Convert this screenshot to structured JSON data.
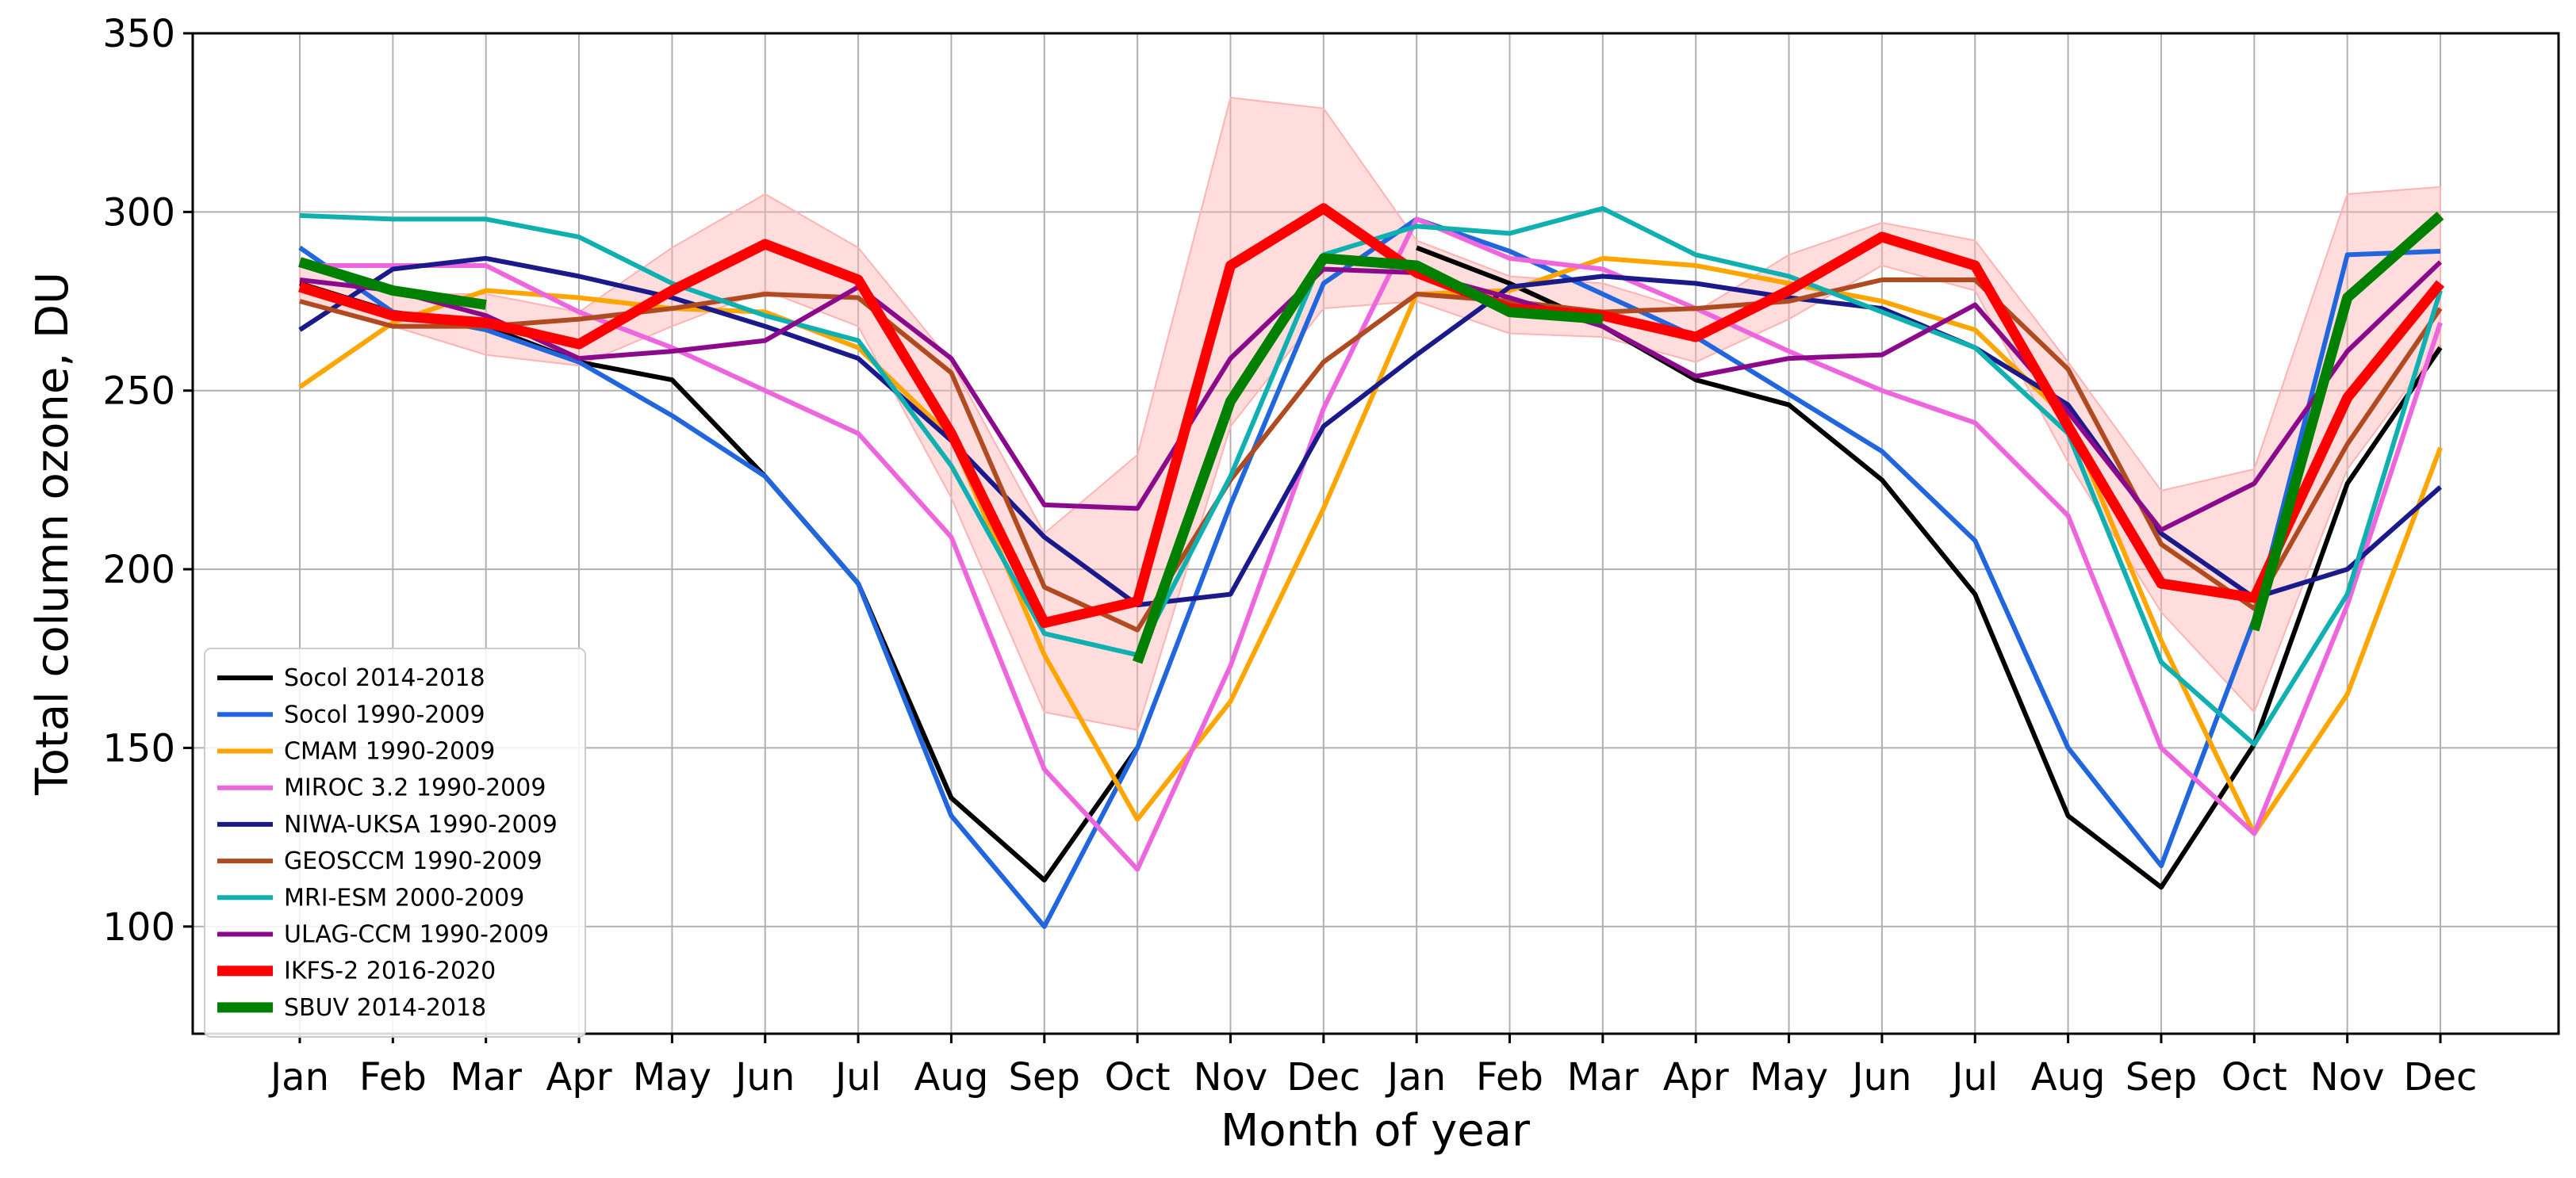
{
  "chart_data": {
    "type": "line",
    "title": "",
    "xlabel": "Month of year",
    "ylabel": "Total column ozone, DU",
    "ylim": [
      70,
      350
    ],
    "yticks": [
      100,
      150,
      200,
      250,
      300,
      350
    ],
    "grid": true,
    "legend_position": "lower-left",
    "categories": [
      "Jan",
      "Feb",
      "Mar",
      "Apr",
      "May",
      "Jun",
      "Jul",
      "Aug",
      "Sep",
      "Oct",
      "Nov",
      "Dec",
      "Jan",
      "Feb",
      "Mar",
      "Apr",
      "May",
      "Jun",
      "Jul",
      "Aug",
      "Sep",
      "Oct",
      "Nov",
      "Dec"
    ],
    "band": {
      "name": "IKFS-2 spread",
      "color": "#ffb3b3",
      "lower": [
        275,
        268,
        260,
        257,
        268,
        278,
        268,
        220,
        160,
        155,
        240,
        273,
        275,
        266,
        265,
        258,
        270,
        285,
        278,
        230,
        188,
        160,
        228,
        263
      ],
      "upper": [
        285,
        277,
        277,
        272,
        290,
        305,
        290,
        258,
        210,
        232,
        332,
        329,
        292,
        282,
        280,
        272,
        288,
        297,
        292,
        258,
        222,
        228,
        305,
        307
      ]
    },
    "series": [
      {
        "name": "Socol 2014-2018",
        "color": "#000000",
        "width": 2,
        "values": [
          280,
          272,
          268,
          258,
          253,
          226,
          196,
          136,
          113,
          150,
          null,
          null,
          290,
          280,
          268,
          253,
          246,
          225,
          193,
          131,
          111,
          151,
          224,
          262
        ]
      },
      {
        "name": "Socol 1990-2009",
        "color": "#2266dd",
        "width": 2,
        "values": [
          290,
          272,
          267,
          258,
          243,
          226,
          196,
          131,
          100,
          150,
          218,
          280,
          298,
          289,
          277,
          265,
          249,
          233,
          208,
          150,
          117,
          186,
          288,
          289
        ]
      },
      {
        "name": "CMAM 1990-2009",
        "color": "#ffa500",
        "width": 2,
        "values": [
          251,
          269,
          278,
          276,
          273,
          272,
          262,
          237,
          176,
          130,
          163,
          217,
          277,
          278,
          287,
          285,
          280,
          275,
          267,
          242,
          180,
          126,
          165,
          234
        ]
      },
      {
        "name": "MIROC 3.2 1990-2009",
        "color": "#ee66dd",
        "width": 2,
        "values": [
          285,
          285,
          285,
          272,
          262,
          250,
          238,
          209,
          144,
          116,
          173,
          245,
          298,
          287,
          284,
          273,
          261,
          250,
          241,
          215,
          150,
          126,
          190,
          269
        ]
      },
      {
        "name": "NIWA-UKSA 1990-2009",
        "color": "#1a1a8a",
        "width": 2,
        "values": [
          267,
          284,
          287,
          282,
          276,
          268,
          259,
          236,
          209,
          190,
          193,
          240,
          260,
          279,
          282,
          280,
          276,
          273,
          262,
          246,
          210,
          192,
          200,
          223
        ]
      },
      {
        "name": "GEOSCCM 1990-2009",
        "color": "#b04a20",
        "width": 2,
        "values": [
          275,
          268,
          268,
          270,
          273,
          277,
          276,
          255,
          195,
          183,
          225,
          258,
          277,
          275,
          272,
          273,
          275,
          281,
          281,
          256,
          207,
          189,
          235,
          273
        ]
      },
      {
        "name": "MRI-ESM 2000-2009",
        "color": "#10b0b0",
        "width": 2,
        "values": [
          299,
          298,
          298,
          293,
          280,
          271,
          264,
          229,
          182,
          176,
          226,
          288,
          296,
          294,
          301,
          288,
          282,
          272,
          262,
          238,
          174,
          151,
          193,
          278
        ]
      },
      {
        "name": "ULAG-CCM 1990-2009",
        "color": "#8b0a8b",
        "width": 2,
        "values": [
          281,
          278,
          271,
          259,
          261,
          264,
          279,
          259,
          218,
          217,
          259,
          284,
          283,
          276,
          268,
          254,
          259,
          260,
          274,
          244,
          211,
          224,
          261,
          286
        ]
      },
      {
        "name": "IKFS-2 2016-2020",
        "color": "#ff0000",
        "width": 5,
        "values": [
          279,
          271,
          269,
          263,
          278,
          291,
          281,
          238,
          185,
          191,
          285,
          301,
          283,
          273,
          271,
          265,
          278,
          293,
          285,
          240,
          196,
          192,
          248,
          280
        ]
      },
      {
        "name": "SBUV 2014-2018",
        "color": "#008000",
        "width": 5,
        "values": [
          286,
          278,
          274,
          null,
          null,
          null,
          null,
          null,
          null,
          174,
          247,
          287,
          285,
          272,
          270,
          null,
          null,
          null,
          null,
          null,
          null,
          183,
          276,
          299
        ]
      }
    ]
  }
}
